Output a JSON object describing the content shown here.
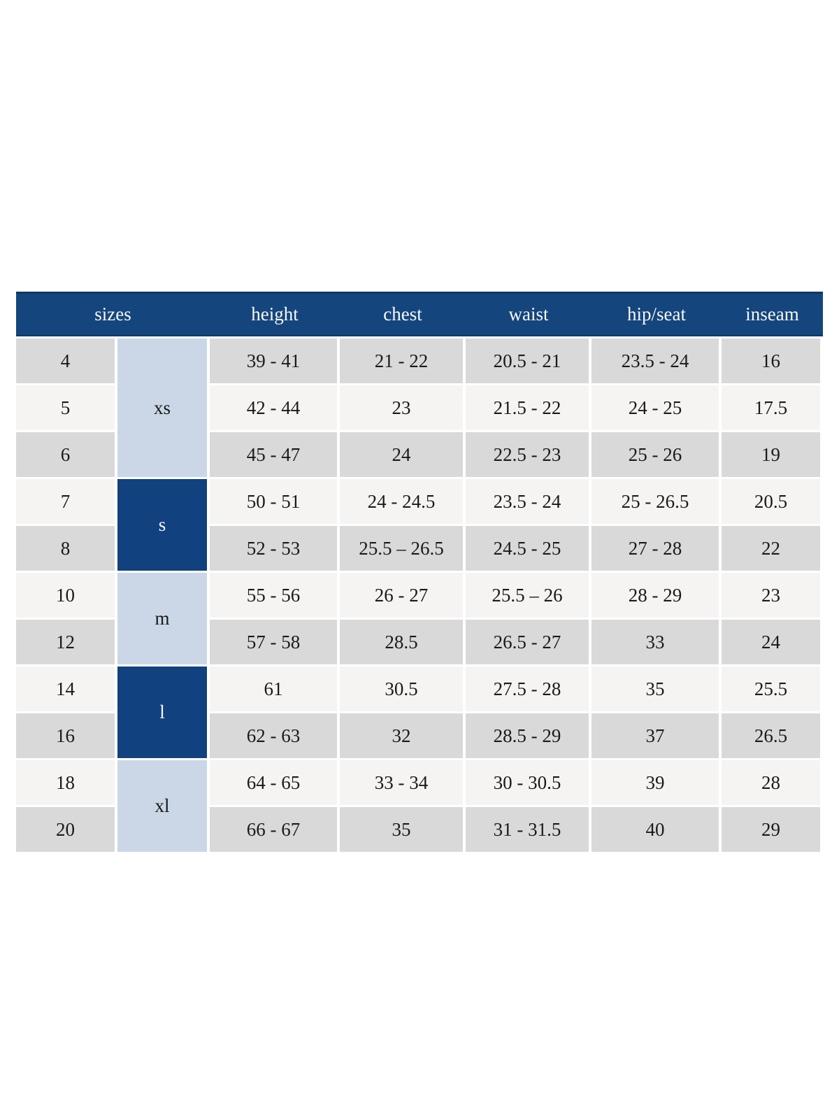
{
  "table": {
    "colors": {
      "header_bg": "#14457d",
      "header_text": "#f7f7f5",
      "group_dark_bg": "#12417f",
      "group_light_bg": "#cbd7e6",
      "row_gray": "#d9d9d9",
      "row_light": "#f5f4f3",
      "cell_text": "#1a1a1a"
    },
    "headers": [
      "sizes",
      "height",
      "chest",
      "waist",
      "hip/seat",
      "inseam"
    ],
    "size_groups": [
      {
        "label": "xs",
        "rows_spanned": 3,
        "style": "light"
      },
      {
        "label": "s",
        "rows_spanned": 2,
        "style": "dark"
      },
      {
        "label": "m",
        "rows_spanned": 2,
        "style": "light"
      },
      {
        "label": "l",
        "rows_spanned": 2,
        "style": "dark"
      },
      {
        "label": "xl",
        "rows_spanned": 2,
        "style": "light"
      }
    ],
    "rows": [
      {
        "size": "4",
        "height": "39 - 41",
        "chest": "21 - 22",
        "waist": "20.5 - 21",
        "hip_seat": "23.5 - 24",
        "inseam": "16"
      },
      {
        "size": "5",
        "height": "42 - 44",
        "chest": "23",
        "waist": "21.5 - 22",
        "hip_seat": "24 - 25",
        "inseam": "17.5"
      },
      {
        "size": "6",
        "height": "45 - 47",
        "chest": "24",
        "waist": "22.5 - 23",
        "hip_seat": "25 - 26",
        "inseam": "19"
      },
      {
        "size": "7",
        "height": "50 - 51",
        "chest": "24 - 24.5",
        "waist": "23.5 - 24",
        "hip_seat": "25 - 26.5",
        "inseam": "20.5"
      },
      {
        "size": "8",
        "height": "52 - 53",
        "chest": "25.5 – 26.5",
        "waist": "24.5 - 25",
        "hip_seat": "27 - 28",
        "inseam": "22"
      },
      {
        "size": "10",
        "height": "55 - 56",
        "chest": "26 - 27",
        "waist": "25.5 – 26",
        "hip_seat": "28 - 29",
        "inseam": "23"
      },
      {
        "size": "12",
        "height": "57 - 58",
        "chest": "28.5",
        "waist": "26.5 - 27",
        "hip_seat": "33",
        "inseam": "24"
      },
      {
        "size": "14",
        "height": "61",
        "chest": "30.5",
        "waist": "27.5 - 28",
        "hip_seat": "35",
        "inseam": "25.5"
      },
      {
        "size": "16",
        "height": "62 - 63",
        "chest": "32",
        "waist": "28.5 - 29",
        "hip_seat": "37",
        "inseam": "26.5"
      },
      {
        "size": "18",
        "height": "64 - 65",
        "chest": "33 - 34",
        "waist": "30 - 30.5",
        "hip_seat": "39",
        "inseam": "28"
      },
      {
        "size": "20",
        "height": "66 - 67",
        "chest": "35",
        "waist": "31 - 31.5",
        "hip_seat": "40",
        "inseam": "29"
      }
    ]
  }
}
